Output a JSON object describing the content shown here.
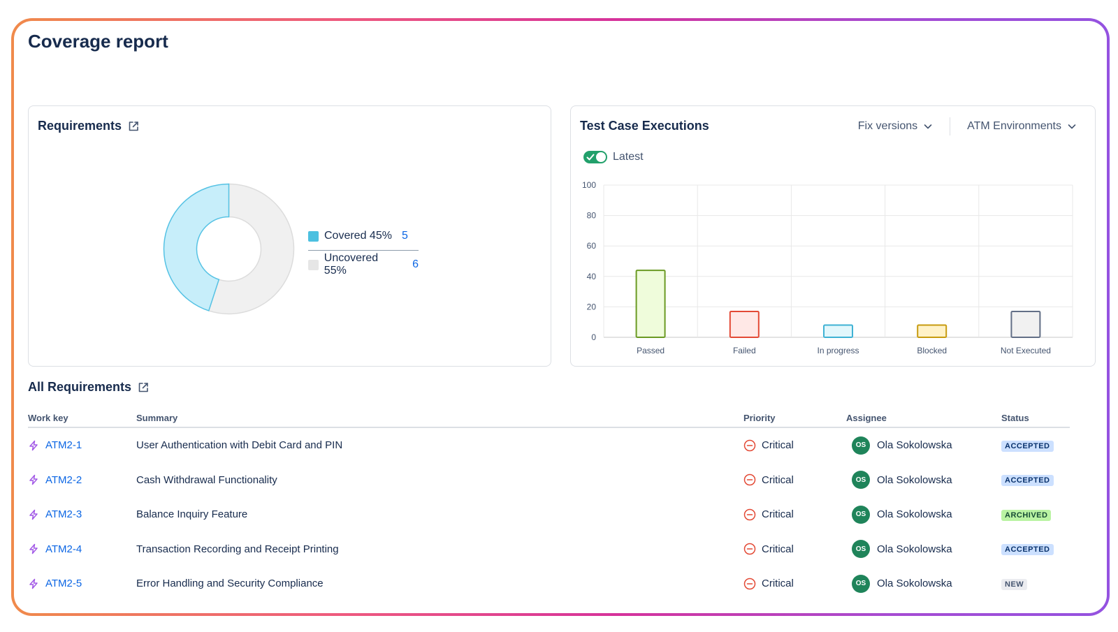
{
  "page": {
    "title": "Coverage report"
  },
  "requirements": {
    "title": "Requirements",
    "legend": [
      {
        "label": "Covered 45%",
        "count": "5",
        "color": "#4cc0e0"
      },
      {
        "label": "Uncovered 55%",
        "count": "6",
        "color": "#e6e6e6"
      }
    ]
  },
  "tce": {
    "title": "Test Case Executions",
    "fix_versions": "Fix versions",
    "environments": "ATM Environments",
    "toggle_label": "Latest"
  },
  "chart_data": [
    {
      "type": "pie",
      "categories": [
        "Covered",
        "Uncovered"
      ],
      "values": [
        45,
        55
      ],
      "counts": [
        5,
        6
      ],
      "colors": [
        "#c7eefa",
        "#f0f0f0"
      ],
      "stroke_colors": [
        "#55c2e4",
        "#dcdcdc"
      ]
    },
    {
      "type": "bar",
      "categories": [
        "Passed",
        "Failed",
        "In progress",
        "Blocked",
        "Not Executed"
      ],
      "values": [
        44,
        17,
        8,
        8,
        17
      ],
      "ylim": [
        0,
        100
      ],
      "yticks": [
        "0",
        "20",
        "40",
        "60",
        "80",
        "100"
      ],
      "fill_colors": [
        "#effcdb",
        "#ffe8e6",
        "#e2f7fc",
        "#fff2c7",
        "#f1f1f1"
      ],
      "stroke_colors": [
        "#6a9a23",
        "#e34935",
        "#3fb2d4",
        "#c79b0f",
        "#626f86"
      ],
      "grid": true
    }
  ],
  "all_requirements": {
    "title": "All Requirements",
    "columns": {
      "key": "Work key",
      "summary": "Summary",
      "priority": "Priority",
      "assignee": "Assignee",
      "status": "Status"
    },
    "rows": [
      {
        "key": "ATM2-1",
        "summary": "User Authentication with Debit Card and PIN",
        "priority": "Critical",
        "initials": "OS",
        "assignee": "Ola Sokolowska",
        "status": "ACCEPTED",
        "status_bg": "#cce0ff",
        "status_fg": "#09326c"
      },
      {
        "key": "ATM2-2",
        "summary": "Cash Withdrawal Functionality",
        "priority": "Critical",
        "initials": "OS",
        "assignee": "Ola Sokolowska",
        "status": "ACCEPTED",
        "status_bg": "#cce0ff",
        "status_fg": "#09326c"
      },
      {
        "key": "ATM2-3",
        "summary": "Balance Inquiry Feature",
        "priority": "Critical",
        "initials": "OS",
        "assignee": "Ola Sokolowska",
        "status": "ARCHIVED",
        "status_bg": "#baf3a3",
        "status_fg": "#164b35"
      },
      {
        "key": "ATM2-4",
        "summary": "Transaction Recording and Receipt Printing",
        "priority": "Critical",
        "initials": "OS",
        "assignee": "Ola Sokolowska",
        "status": "ACCEPTED",
        "status_bg": "#cce0ff",
        "status_fg": "#09326c"
      },
      {
        "key": "ATM2-5",
        "summary": "Error Handling and Security Compliance",
        "priority": "Critical",
        "initials": "OS",
        "assignee": "Ola Sokolowska",
        "status": "NEW",
        "status_bg": "#ebecf0",
        "status_fg": "#44546f"
      }
    ]
  }
}
